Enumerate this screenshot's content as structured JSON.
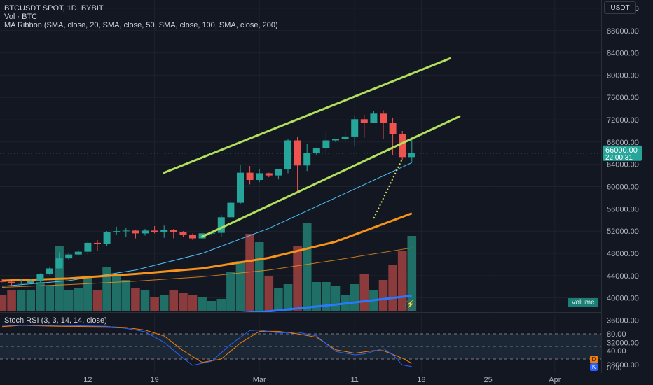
{
  "header": {
    "title": "BTCUSDT SPOT, 1D, BYBIT",
    "volume_label": "Vol · BTC",
    "ma_label": "MA Ribbon (SMA, close, 20, SMA, close, 50, SMA, close, 100, SMA, close, 200)"
  },
  "currency": "USDT",
  "volume_badge": "Volume",
  "rsi_label": "Stoch RSI (3, 3, 14, 14, close)",
  "rsi_badges": {
    "d": "D",
    "k": "K"
  },
  "colors": {
    "up": "#26a69a",
    "down": "#ef5350",
    "vol_up": "#1f6f66",
    "vol_down": "#8c3b3c",
    "ma20": "#4fc3f7",
    "ma50": "#f7931a",
    "ma100": "#f7931a",
    "ma200": "#2979ff",
    "channel": "#b2e05c",
    "rsi_k": "#2962ff",
    "rsi_d": "#f57c00"
  },
  "chart_data": {
    "type": "candlestick",
    "price_axis": {
      "ticks": [
        92000,
        88000,
        84000,
        80000,
        76000,
        72000,
        68000,
        64000,
        60000,
        56000,
        52000,
        48000,
        44000,
        40000,
        36000,
        32000,
        28000
      ],
      "tick_labels": [
        "92000.00",
        "88000.00",
        "84000.00",
        "80000.00",
        "76000.00",
        "72000.00",
        "68000.00",
        "64000.00",
        "60000.00",
        "56000.00",
        "52000.00",
        "48000.00",
        "44000.00",
        "40000.00",
        "36000.00",
        "32000.00",
        "28000.00"
      ],
      "range": [
        24500,
        93500
      ]
    },
    "last_price_label": "66000.00",
    "countdown_label": "22:00:31",
    "time_axis": {
      "labels": [
        "12",
        "19",
        "Mar",
        "11",
        "18",
        "25",
        "Apr"
      ],
      "label_dates": [
        "2024-02-12",
        "2024-02-19",
        "2024-03-01",
        "2024-03-11",
        "2024-03-18",
        "2024-03-25",
        "2024-04-01"
      ],
      "range": [
        "2024-02-03",
        "2024-04-04"
      ]
    },
    "candles": [
      {
        "date": "2024-02-03",
        "o": 43000,
        "h": 43400,
        "l": 42800,
        "c": 42900
      },
      {
        "date": "2024-02-04",
        "o": 42900,
        "h": 43100,
        "l": 42300,
        "c": 42600
      },
      {
        "date": "2024-02-05",
        "o": 42600,
        "h": 43500,
        "l": 42300,
        "c": 42700
      },
      {
        "date": "2024-02-06",
        "o": 42700,
        "h": 43400,
        "l": 42600,
        "c": 43100
      },
      {
        "date": "2024-02-07",
        "o": 43100,
        "h": 44400,
        "l": 42800,
        "c": 44300
      },
      {
        "date": "2024-02-08",
        "o": 44300,
        "h": 45600,
        "l": 44100,
        "c": 45300
      },
      {
        "date": "2024-02-09",
        "o": 45300,
        "h": 48200,
        "l": 45300,
        "c": 47100
      },
      {
        "date": "2024-02-10",
        "o": 47100,
        "h": 48200,
        "l": 46800,
        "c": 47800
      },
      {
        "date": "2024-02-11",
        "o": 47800,
        "h": 48600,
        "l": 47600,
        "c": 48300
      },
      {
        "date": "2024-02-12",
        "o": 48300,
        "h": 50300,
        "l": 47700,
        "c": 49900
      },
      {
        "date": "2024-02-13",
        "o": 49900,
        "h": 50400,
        "l": 48400,
        "c": 49700
      },
      {
        "date": "2024-02-14",
        "o": 49700,
        "h": 52000,
        "l": 49300,
        "c": 51800
      },
      {
        "date": "2024-02-15",
        "o": 51800,
        "h": 52800,
        "l": 51300,
        "c": 52000
      },
      {
        "date": "2024-02-16",
        "o": 52000,
        "h": 52600,
        "l": 51000,
        "c": 52100
      },
      {
        "date": "2024-02-17",
        "o": 52100,
        "h": 52200,
        "l": 50700,
        "c": 51600
      },
      {
        "date": "2024-02-18",
        "o": 51600,
        "h": 52400,
        "l": 51200,
        "c": 52100
      },
      {
        "date": "2024-02-19",
        "o": 52100,
        "h": 52900,
        "l": 51600,
        "c": 51800
      },
      {
        "date": "2024-02-20",
        "o": 51800,
        "h": 53000,
        "l": 50800,
        "c": 52200
      },
      {
        "date": "2024-02-21",
        "o": 52200,
        "h": 52400,
        "l": 50700,
        "c": 51800
      },
      {
        "date": "2024-02-22",
        "o": 51800,
        "h": 52000,
        "l": 50900,
        "c": 51300
      },
      {
        "date": "2024-02-23",
        "o": 51300,
        "h": 51600,
        "l": 50400,
        "c": 50700
      },
      {
        "date": "2024-02-24",
        "o": 50700,
        "h": 51800,
        "l": 50600,
        "c": 51600
      },
      {
        "date": "2024-02-25",
        "o": 51600,
        "h": 52000,
        "l": 51200,
        "c": 51700
      },
      {
        "date": "2024-02-26",
        "o": 51700,
        "h": 54900,
        "l": 50900,
        "c": 54500
      },
      {
        "date": "2024-02-27",
        "o": 54500,
        "h": 57500,
        "l": 54500,
        "c": 57100
      },
      {
        "date": "2024-02-28",
        "o": 57100,
        "h": 63900,
        "l": 56800,
        "c": 62500
      },
      {
        "date": "2024-02-29",
        "o": 62500,
        "h": 63700,
        "l": 60400,
        "c": 61200
      },
      {
        "date": "2024-03-01",
        "o": 61200,
        "h": 63200,
        "l": 60800,
        "c": 62400
      },
      {
        "date": "2024-03-02",
        "o": 62400,
        "h": 62500,
        "l": 61700,
        "c": 62000
      },
      {
        "date": "2024-03-03",
        "o": 62000,
        "h": 63200,
        "l": 61300,
        "c": 63100
      },
      {
        "date": "2024-03-04",
        "o": 63100,
        "h": 68500,
        "l": 62400,
        "c": 68300
      },
      {
        "date": "2024-03-05",
        "o": 68300,
        "h": 69000,
        "l": 59000,
        "c": 63800
      },
      {
        "date": "2024-03-06",
        "o": 63800,
        "h": 67600,
        "l": 62800,
        "c": 66100
      },
      {
        "date": "2024-03-07",
        "o": 66100,
        "h": 67000,
        "l": 65600,
        "c": 66900
      },
      {
        "date": "2024-03-08",
        "o": 66900,
        "h": 69900,
        "l": 66100,
        "c": 68300
      },
      {
        "date": "2024-03-09",
        "o": 68300,
        "h": 68600,
        "l": 68000,
        "c": 68500
      },
      {
        "date": "2024-03-10",
        "o": 68500,
        "h": 70000,
        "l": 68200,
        "c": 69000
      },
      {
        "date": "2024-03-11",
        "o": 69000,
        "h": 72800,
        "l": 67200,
        "c": 72100
      },
      {
        "date": "2024-03-12",
        "o": 72100,
        "h": 72900,
        "l": 68800,
        "c": 71500
      },
      {
        "date": "2024-03-13",
        "o": 71500,
        "h": 73600,
        "l": 71400,
        "c": 73100
      },
      {
        "date": "2024-03-14",
        "o": 73100,
        "h": 73700,
        "l": 68600,
        "c": 71400
      },
      {
        "date": "2024-03-15",
        "o": 71400,
        "h": 72400,
        "l": 65600,
        "c": 69400
      },
      {
        "date": "2024-03-16",
        "o": 69400,
        "h": 70000,
        "l": 64800,
        "c": 65300
      },
      {
        "date": "2024-03-17",
        "o": 65300,
        "h": 68900,
        "l": 64500,
        "c": 66000
      }
    ],
    "volume": [
      8,
      10,
      10,
      10,
      14,
      12,
      31,
      10,
      11,
      17,
      10,
      21,
      17,
      15,
      11,
      10,
      7,
      8,
      10,
      9,
      8,
      7,
      5,
      6,
      19,
      24,
      37,
      33,
      17,
      11,
      13,
      31,
      42,
      14,
      14,
      12,
      8,
      13,
      18,
      10,
      15,
      22,
      29,
      36
    ],
    "ma_ribbon": [
      {
        "name": "MA 20",
        "color": "#4fc3f7",
        "points": [
          [
            "2024-02-03",
            42100
          ],
          [
            "2024-02-10",
            43100
          ],
          [
            "2024-02-17",
            45000
          ],
          [
            "2024-02-24",
            48000
          ],
          [
            "2024-03-02",
            52500
          ],
          [
            "2024-03-09",
            58000
          ],
          [
            "2024-03-17",
            64300
          ]
        ]
      },
      {
        "name": "MA 50",
        "color": "#f7931a",
        "points": [
          [
            "2024-02-03",
            43100
          ],
          [
            "2024-02-10",
            43500
          ],
          [
            "2024-02-17",
            44300
          ],
          [
            "2024-02-24",
            45300
          ],
          [
            "2024-03-02",
            47200
          ],
          [
            "2024-03-09",
            50100
          ],
          [
            "2024-03-17",
            55200
          ]
        ]
      },
      {
        "name": "MA 100",
        "color": "#f7931a",
        "points": [
          [
            "2024-02-03",
            41900
          ],
          [
            "2024-02-10",
            42400
          ],
          [
            "2024-02-17",
            43000
          ],
          [
            "2024-02-24",
            43800
          ],
          [
            "2024-03-02",
            45000
          ],
          [
            "2024-03-09",
            46800
          ],
          [
            "2024-03-17",
            49000
          ]
        ]
      },
      {
        "name": "MA 200",
        "color": "#2979ff",
        "points": [
          [
            "2024-02-03",
            35000
          ],
          [
            "2024-02-10",
            35600
          ],
          [
            "2024-02-17",
            36200
          ],
          [
            "2024-02-24",
            36800
          ],
          [
            "2024-03-02",
            37600
          ],
          [
            "2024-03-09",
            38800
          ],
          [
            "2024-03-17",
            40400
          ]
        ]
      }
    ],
    "channel_lines": [
      {
        "from": [
          "2024-02-24",
          51000
        ],
        "to": [
          "2024-03-22",
          72600
        ]
      },
      {
        "from": [
          "2024-02-20",
          62500
        ],
        "to": [
          "2024-03-21",
          83000
        ]
      }
    ],
    "projection_line": {
      "from": [
        "2024-03-13",
        54300
      ],
      "to": [
        "2024-03-16",
        65000
      ]
    },
    "stoch_rsi": {
      "range": [
        0,
        100
      ],
      "levels": [
        80,
        50,
        20
      ],
      "tick_labels": [
        "80.00",
        "40.00",
        "0.00"
      ],
      "tick_values": [
        80,
        40,
        0
      ],
      "k": [
        [
          "2024-02-03",
          100
        ],
        [
          "2024-02-05",
          100
        ],
        [
          "2024-02-09",
          100
        ],
        [
          "2024-02-14",
          98
        ],
        [
          "2024-02-16",
          93
        ],
        [
          "2024-02-18",
          85
        ],
        [
          "2024-02-20",
          60
        ],
        [
          "2024-02-22",
          22
        ],
        [
          "2024-02-23",
          5
        ],
        [
          "2024-02-25",
          15
        ],
        [
          "2024-02-27",
          55
        ],
        [
          "2024-02-29",
          88
        ],
        [
          "2024-03-01",
          89
        ],
        [
          "2024-03-03",
          82
        ],
        [
          "2024-03-05",
          84
        ],
        [
          "2024-03-07",
          75
        ],
        [
          "2024-03-09",
          38
        ],
        [
          "2024-03-11",
          30
        ],
        [
          "2024-03-12",
          32
        ],
        [
          "2024-03-14",
          45
        ],
        [
          "2024-03-15",
          30
        ],
        [
          "2024-03-16",
          6
        ],
        [
          "2024-03-17",
          2
        ]
      ],
      "d": [
        [
          "2024-02-03",
          97
        ],
        [
          "2024-02-05",
          100
        ],
        [
          "2024-02-09",
          98
        ],
        [
          "2024-02-14",
          97
        ],
        [
          "2024-02-16",
          95
        ],
        [
          "2024-02-18",
          89
        ],
        [
          "2024-02-20",
          75
        ],
        [
          "2024-02-22",
          40
        ],
        [
          "2024-02-24",
          12
        ],
        [
          "2024-02-26",
          20
        ],
        [
          "2024-02-28",
          58
        ],
        [
          "2024-03-01",
          86
        ],
        [
          "2024-03-03",
          86
        ],
        [
          "2024-03-05",
          80
        ],
        [
          "2024-03-07",
          72
        ],
        [
          "2024-03-09",
          42
        ],
        [
          "2024-03-11",
          34
        ],
        [
          "2024-03-13",
          40
        ],
        [
          "2024-03-14",
          40
        ],
        [
          "2024-03-16",
          22
        ],
        [
          "2024-03-17",
          10
        ]
      ]
    }
  }
}
